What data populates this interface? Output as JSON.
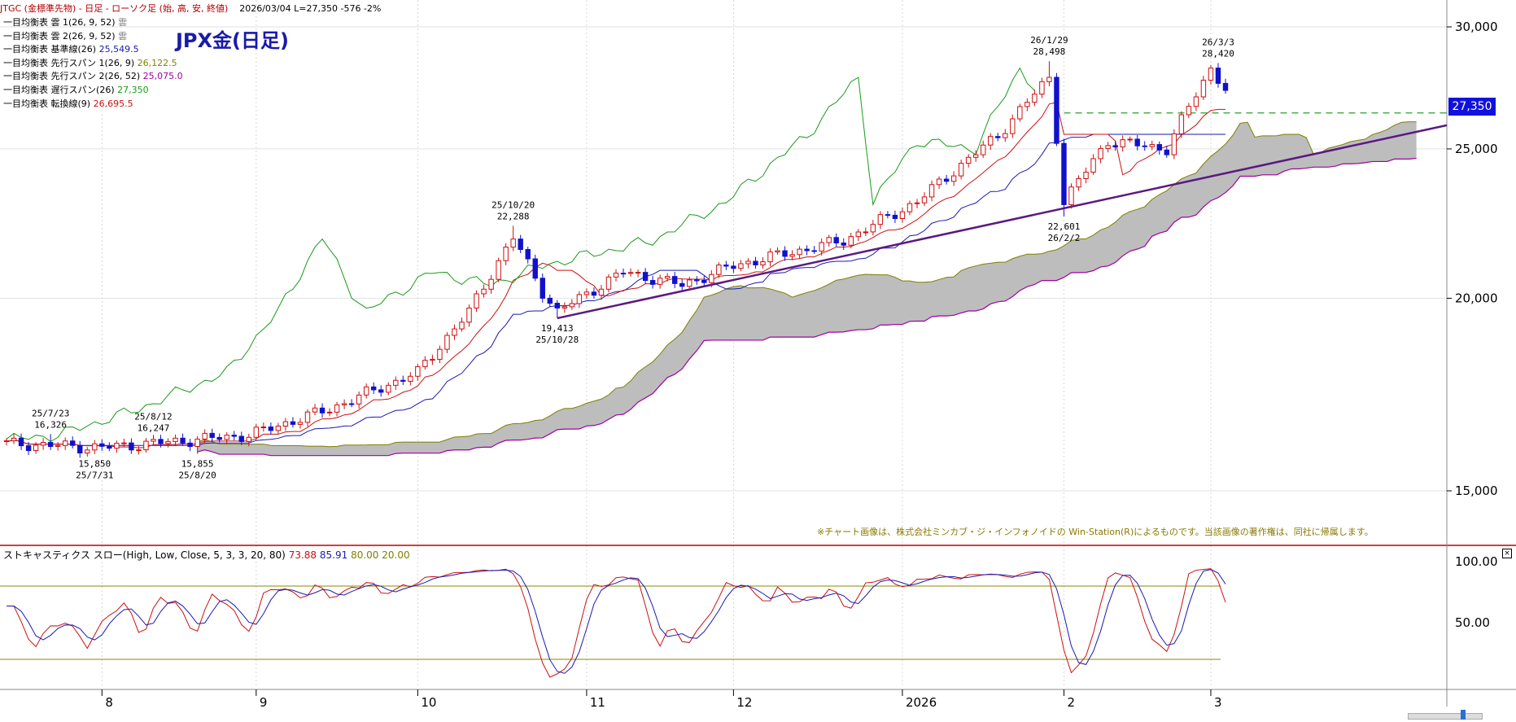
{
  "header": {
    "symbol_text": "JTGC (金標準先物) - 日足 - ローソク足 (始, 高, 安, 終値)",
    "date": "2026/03/04",
    "last": "L=27,350",
    "change": "-576",
    "pct": "-2%"
  },
  "title": "JPX金(日足)",
  "legend": [
    {
      "label": "一目均衡表 雲 1(26, 9, 52)",
      "value": "雲",
      "color": "#808080"
    },
    {
      "label": "一目均衡表 雲 2(26, 9, 52)",
      "value": "雲",
      "color": "#808080"
    },
    {
      "label": "一目均衡表 基準線(26)",
      "value": "25,549.5",
      "color": "#1a1ab0"
    },
    {
      "label": "一目均衡表 先行スパン 1(26, 9)",
      "value": "26,122.5",
      "color": "#808000"
    },
    {
      "label": "一目均衡表 先行スパン 2(26, 52)",
      "value": "25,075.0",
      "color": "#a000a0"
    },
    {
      "label": "一目均衡表 遅行スパン(26)",
      "value": "27,350",
      "color": "#1a9a1a"
    },
    {
      "label": "一目均衡表 転換線(9)",
      "value": "26,695.5",
      "color": "#cc1010"
    }
  ],
  "copyright": "※チャート画像は、株式会社ミンカブ・ジ・インフォノイドの Win-Station(R)によるものです。当該画像の著作権は、同社に帰属します。",
  "stoch_header": {
    "label": "ストキャスティクス スロー(High, Low, Close, 5, 3, 3, 20, 80)",
    "v1": "73.88",
    "v2": "85.91",
    "v3": "80.00",
    "v4": "20.00"
  },
  "close_glyph": "×",
  "last_price_label": "27,350",
  "chart_data": {
    "type": "candlestick",
    "y_ticks": [
      "30,000",
      "25,000",
      "20,000",
      "15,000"
    ],
    "y_tick_values": [
      30000,
      25000,
      20000,
      15000
    ],
    "x_ticks": [
      "8",
      "9",
      "10",
      "11",
      "12",
      "2026",
      "2",
      "3"
    ],
    "x_tick_dates": [
      "2025-08-01",
      "2025-09-01",
      "2025-10-01",
      "2025-11-01",
      "2025-12-01",
      "2026-01-01",
      "2026-02-01",
      "2026-03-01"
    ],
    "stoch_ticks": [
      "100.00",
      "50.00"
    ],
    "stoch_levels": [
      80,
      20
    ],
    "annotations": [
      {
        "date": "2025-07-23",
        "text1": "25/7/23",
        "text2": "16,326",
        "pos": "above",
        "price": 16326
      },
      {
        "date": "2025-07-31",
        "text1": "15,850",
        "text2": "25/7/31",
        "pos": "below",
        "price": 15850
      },
      {
        "date": "2025-08-12",
        "text1": "25/8/12",
        "text2": "16,247",
        "pos": "above",
        "price": 16247
      },
      {
        "date": "2025-08-20",
        "text1": "15,855",
        "text2": "25/8/20",
        "pos": "below",
        "price": 15855
      },
      {
        "date": "2025-10-20",
        "text1": "25/10/20",
        "text2": "22,288",
        "pos": "above",
        "price": 22288
      },
      {
        "date": "2025-10-28",
        "text1": "19,413",
        "text2": "25/10/28",
        "pos": "below",
        "price": 19413
      },
      {
        "date": "2026-01-29",
        "text1": "26/1/29",
        "text2": "28,498",
        "pos": "above",
        "price": 28498
      },
      {
        "date": "2026-02-02",
        "text1": "22,601",
        "text2": "26/2/2",
        "pos": "below",
        "price": 22601
      },
      {
        "date": "2026-03-03",
        "text1": "26/3/3",
        "text2": "28,420",
        "pos": "above",
        "price": 28420
      }
    ],
    "key_closes": [
      {
        "date": "2025-07-15",
        "close": 16100
      },
      {
        "date": "2025-08-01",
        "close": 16000
      },
      {
        "date": "2025-08-29",
        "close": 16300
      },
      {
        "date": "2025-09-15",
        "close": 16950
      },
      {
        "date": "2025-10-01",
        "close": 17900
      },
      {
        "date": "2025-10-10",
        "close": 19600
      },
      {
        "date": "2025-10-20",
        "close": 21900
      },
      {
        "date": "2025-10-24",
        "close": 20200
      },
      {
        "date": "2025-10-28",
        "close": 19600
      },
      {
        "date": "2025-11-10",
        "close": 20800
      },
      {
        "date": "2025-11-20",
        "close": 20400
      },
      {
        "date": "2025-12-01",
        "close": 21000
      },
      {
        "date": "2025-12-20",
        "close": 21800
      },
      {
        "date": "2026-01-05",
        "close": 23100
      },
      {
        "date": "2026-01-20",
        "close": 25500
      },
      {
        "date": "2026-01-29",
        "close": 27800
      },
      {
        "date": "2026-02-02",
        "close": 23100
      },
      {
        "date": "2026-02-10",
        "close": 25300
      },
      {
        "date": "2026-02-20",
        "close": 25000
      },
      {
        "date": "2026-03-02",
        "close": 28200
      },
      {
        "date": "2026-03-04",
        "close": 27350
      }
    ]
  }
}
